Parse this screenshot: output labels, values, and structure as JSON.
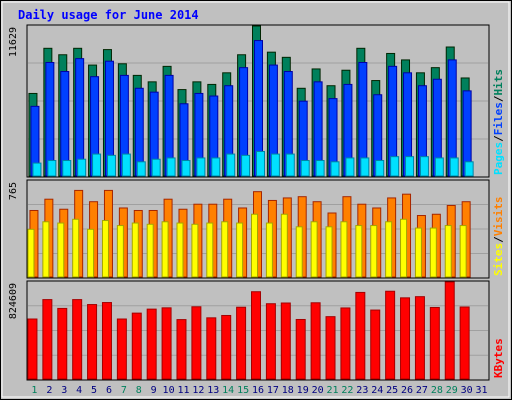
{
  "colors": {
    "background": "#c0c0c0",
    "plot_background": "#c0c0c0",
    "gridline": "#a0a0a0",
    "title": "#0000ff",
    "axis_max": "#000000",
    "day_weekday": "#000080",
    "day_weekend": "#00805c",
    "hits": "#00805c",
    "files": "#0040ff",
    "pages": "#00e0ff",
    "visits": "#ff8000",
    "sites": "#ffff00",
    "kbytes": "#ff0000",
    "separator": "#000000"
  },
  "chart_data": {
    "type": "bar",
    "title": "Daily usage for June 2014",
    "days": [
      "1",
      "2",
      "3",
      "4",
      "5",
      "6",
      "7",
      "8",
      "9",
      "10",
      "11",
      "12",
      "13",
      "14",
      "15",
      "16",
      "17",
      "18",
      "19",
      "20",
      "21",
      "22",
      "23",
      "24",
      "25",
      "26",
      "27",
      "28",
      "29",
      "30",
      "31"
    ],
    "weekend_days": [
      "1",
      "7",
      "8",
      "14",
      "15",
      "21",
      "22",
      "28",
      "29"
    ],
    "panels": [
      {
        "id": "hits-files-pages",
        "axis_max_label": "11629",
        "ylim": [
          0,
          11629
        ],
        "legend": [
          "Pages",
          "/",
          "Files",
          "/",
          "Hits"
        ],
        "legend_colors": [
          "#00e0ff",
          "#000000",
          "#0040ff",
          "#000000",
          "#00805c"
        ],
        "series": [
          {
            "name": "Hits",
            "values": [
              6400,
              9900,
              9400,
              9900,
              8600,
              9800,
              8700,
              7800,
              7300,
              8500,
              6700,
              7300,
              7100,
              8000,
              9400,
              11629,
              9600,
              9200,
              6800,
              8300,
              7000,
              8200,
              9900,
              7400,
              9500,
              9000,
              8000,
              8400,
              10000,
              7600,
              0
            ]
          },
          {
            "name": "Files",
            "values": [
              5400,
              8800,
              8100,
              9100,
              7700,
              8900,
              7800,
              6800,
              6500,
              7800,
              5600,
              6400,
              6200,
              7000,
              8400,
              10500,
              8600,
              8100,
              5800,
              7300,
              6000,
              7100,
              8800,
              6300,
              8500,
              8000,
              7000,
              7500,
              9000,
              6600,
              0
            ]
          },
          {
            "name": "Pages",
            "values": [
              1000,
              1200,
              1200,
              1300,
              1700,
              1600,
              1700,
              1100,
              1300,
              1400,
              1200,
              1400,
              1400,
              1700,
              1600,
              1900,
              1700,
              1700,
              1200,
              1200,
              1100,
              1400,
              1400,
              1200,
              1500,
              1500,
              1500,
              1400,
              1400,
              1100,
              0
            ]
          }
        ]
      },
      {
        "id": "visits-sites",
        "axis_max_label": "765",
        "ylim": [
          0,
          765
        ],
        "legend": [
          "Sites",
          "/",
          "Visits"
        ],
        "legend_colors": [
          "#ffff00",
          "#000000",
          "#ff8000"
        ],
        "series": [
          {
            "name": "Visits",
            "values": [
              530,
              620,
              540,
              690,
              600,
              690,
              550,
              530,
              530,
              620,
              540,
              580,
              580,
              620,
              550,
              680,
              610,
              630,
              640,
              600,
              510,
              640,
              580,
              550,
              630,
              660,
              490,
              500,
              570,
              600,
              0
            ]
          },
          {
            "name": "Sites",
            "values": [
              380,
              440,
              430,
              460,
              380,
              450,
              410,
              430,
              420,
              440,
              430,
              420,
              430,
              440,
              430,
              500,
              430,
              500,
              400,
              440,
              400,
              440,
              410,
              410,
              440,
              460,
              390,
              390,
              410,
              410,
              0
            ]
          }
        ]
      },
      {
        "id": "kbytes",
        "axis_max_label": "824609",
        "ylim": [
          0,
          824609
        ],
        "legend": [
          "KBytes"
        ],
        "legend_colors": [
          "#ff0000"
        ],
        "series": [
          {
            "name": "KBytes",
            "values": [
              510000,
              675000,
              600000,
              675000,
              633000,
              650000,
              510000,
              560000,
              594000,
              605000,
              505000,
              614000,
              520000,
              540000,
              610000,
              742000,
              640000,
              646000,
              506000,
              648000,
              530000,
              604000,
              736000,
              586000,
              746000,
              690000,
              700000,
              608000,
              824609,
              612000,
              0
            ]
          }
        ]
      }
    ]
  }
}
